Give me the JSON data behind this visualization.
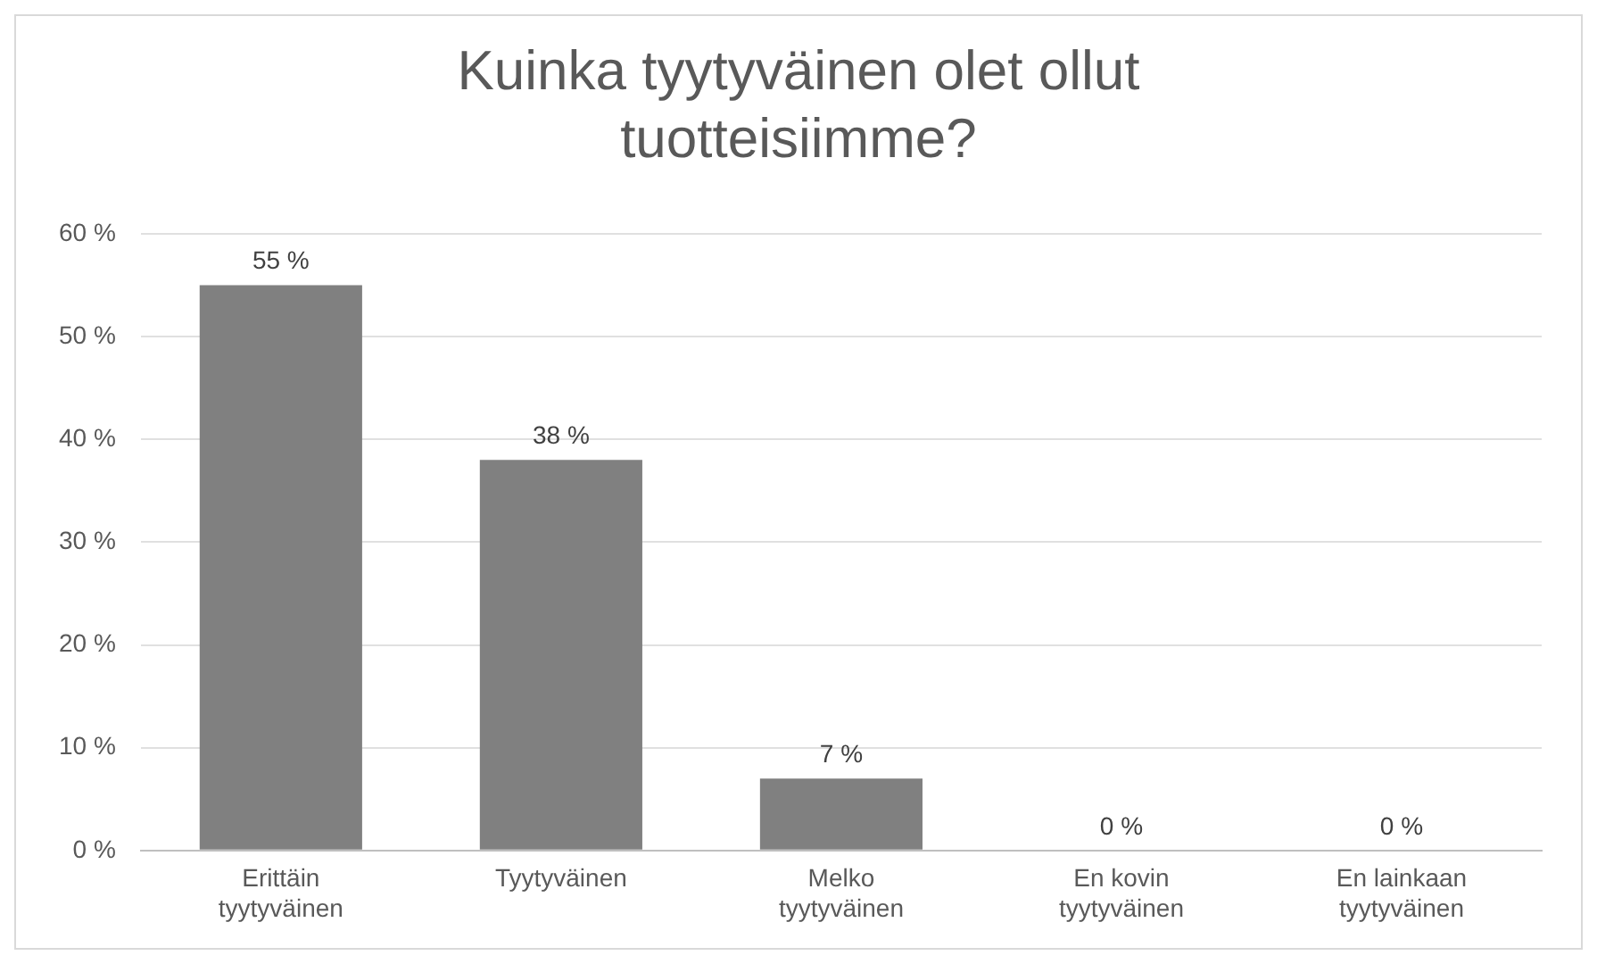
{
  "chart_data": {
    "type": "bar",
    "title": "Kuinka tyytyväinen olet ollut tuotteisiimme?",
    "categories": [
      "Erittäin tyytyväinen",
      "Tyytyväinen",
      "Melko tyytyväinen",
      "En kovin tyytyväinen",
      "En lainkaan tyytyväinen"
    ],
    "values": [
      55,
      38,
      7,
      0,
      0
    ],
    "value_labels": [
      "55 %",
      "38 %",
      "7 %",
      "0 %",
      "0 %"
    ],
    "color": "#808080",
    "ylim": [
      0,
      60
    ],
    "yticks": [
      {
        "value": 0,
        "label": "0 %"
      },
      {
        "value": 10,
        "label": "10 %"
      },
      {
        "value": 20,
        "label": "20 %"
      },
      {
        "value": 30,
        "label": "30 %"
      },
      {
        "value": 40,
        "label": "40 %"
      },
      {
        "value": 50,
        "label": "50 %"
      },
      {
        "value": 60,
        "label": "60 %"
      }
    ],
    "grid": "y",
    "legend": false
  }
}
